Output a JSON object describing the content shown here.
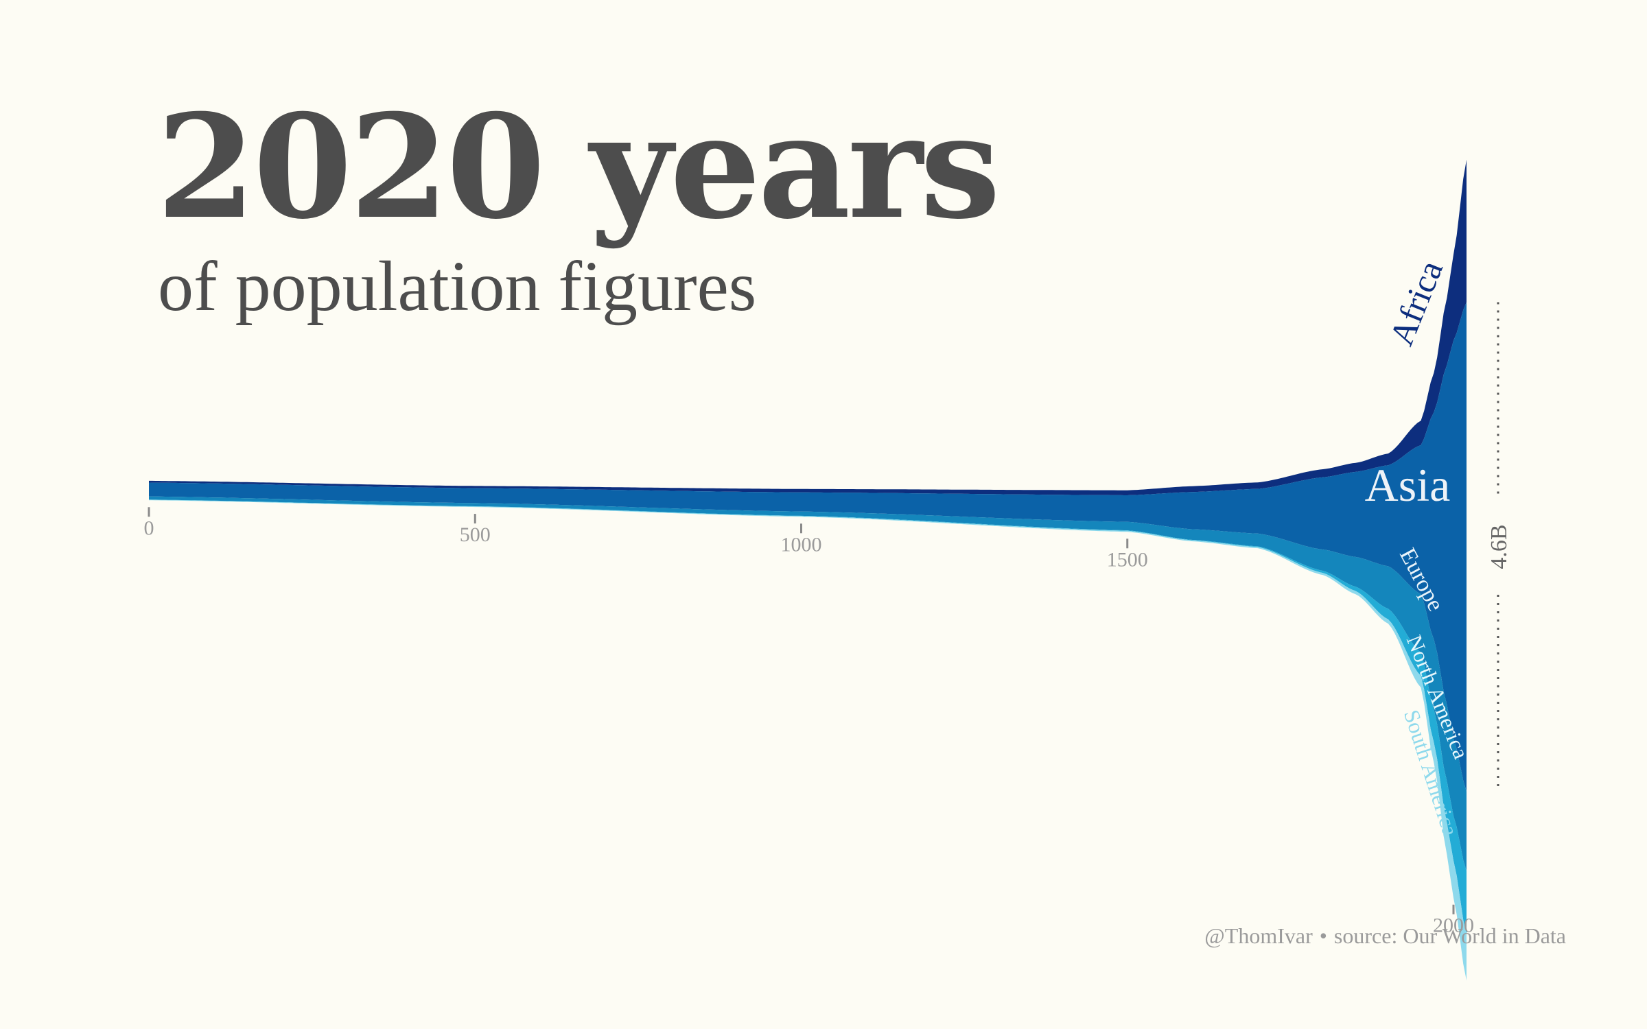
{
  "title": "2020 years",
  "subtitle": "of population figures",
  "credit": {
    "handle": "@ThomIvar",
    "separator": "•",
    "source": "source: Our World in Data"
  },
  "colors": {
    "background": "#fdfcf4",
    "text": "#4d4d4d",
    "muted": "#9a9a9a",
    "africa": "#0d2e7e",
    "asia": "#0b62a8",
    "europe": "#1486bc",
    "north_america": "#23acd6",
    "south_america": "#8ed9ec"
  },
  "chart_data": {
    "type": "area",
    "x_ticks": [
      "0",
      "500",
      "1000",
      "1500",
      "2000"
    ],
    "x": [
      0,
      500,
      1000,
      1500,
      1600,
      1700,
      1800,
      1850,
      1900,
      1950,
      1970,
      1990,
      2000,
      2020
    ],
    "series": [
      {
        "name": "Africa",
        "values": [
          0.017,
          0.021,
          0.032,
          0.047,
          0.055,
          0.061,
          0.076,
          0.085,
          0.11,
          0.23,
          0.37,
          0.63,
          0.81,
          1.34
        ]
      },
      {
        "name": "Asia",
        "values": [
          0.13,
          0.14,
          0.18,
          0.25,
          0.35,
          0.42,
          0.68,
          0.8,
          0.95,
          1.4,
          2.14,
          3.2,
          3.74,
          4.6
        ]
      },
      {
        "name": "Europe",
        "values": [
          0.03,
          0.03,
          0.04,
          0.08,
          0.1,
          0.12,
          0.2,
          0.28,
          0.4,
          0.55,
          0.66,
          0.72,
          0.73,
          0.75
        ]
      },
      {
        "name": "North America",
        "values": [
          0.002,
          0.002,
          0.003,
          0.004,
          0.004,
          0.006,
          0.02,
          0.04,
          0.1,
          0.22,
          0.31,
          0.39,
          0.42,
          0.6
        ]
      },
      {
        "name": "South America",
        "values": [
          0.004,
          0.005,
          0.006,
          0.01,
          0.01,
          0.012,
          0.02,
          0.03,
          0.04,
          0.11,
          0.19,
          0.3,
          0.35,
          0.43
        ]
      }
    ],
    "marker": {
      "label": "4.6B",
      "series": "Asia",
      "x": 2020,
      "value": 4.6
    },
    "xlim": [
      0,
      2020
    ]
  }
}
